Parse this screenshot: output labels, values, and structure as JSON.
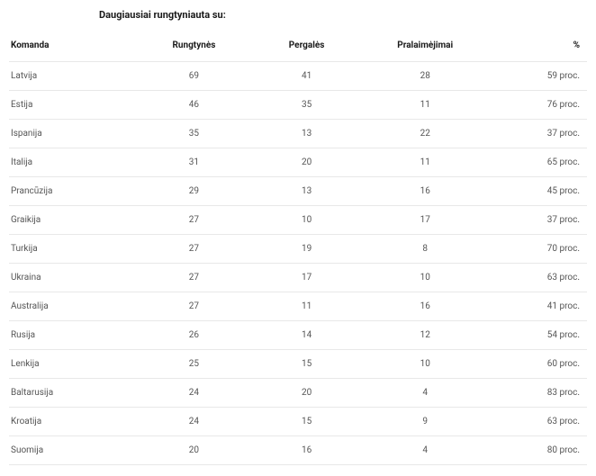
{
  "title": "Daugiausiai rungtyniauta su:",
  "columns": [
    "Komanda",
    "Rungtynės",
    "Pergalės",
    "Pralaimėjimai",
    "%"
  ],
  "pct_suffix": " proc.",
  "rows": [
    {
      "team": "Latvija",
      "games": "69",
      "wins": "41",
      "losses": "28",
      "pct": "59"
    },
    {
      "team": "Estija",
      "games": "46",
      "wins": "35",
      "losses": "11",
      "pct": "76"
    },
    {
      "team": "Ispanija",
      "games": "35",
      "wins": "13",
      "losses": "22",
      "pct": "37"
    },
    {
      "team": "Italija",
      "games": "31",
      "wins": "20",
      "losses": "11",
      "pct": "65"
    },
    {
      "team": "Prancūzija",
      "games": "29",
      "wins": "13",
      "losses": "16",
      "pct": "45"
    },
    {
      "team": "Graikija",
      "games": "27",
      "wins": "10",
      "losses": "17",
      "pct": "37"
    },
    {
      "team": "Turkija",
      "games": "27",
      "wins": "19",
      "losses": "8",
      "pct": "70"
    },
    {
      "team": "Ukraina",
      "games": "27",
      "wins": "17",
      "losses": "10",
      "pct": "63"
    },
    {
      "team": "Australija",
      "games": "27",
      "wins": "11",
      "losses": "16",
      "pct": "41"
    },
    {
      "team": "Rusija",
      "games": "26",
      "wins": "14",
      "losses": "12",
      "pct": "54"
    },
    {
      "team": "Lenkija",
      "games": "25",
      "wins": "15",
      "losses": "10",
      "pct": "60"
    },
    {
      "team": "Baltarusija",
      "games": "24",
      "wins": "20",
      "losses": "4",
      "pct": "83"
    },
    {
      "team": "Kroatija",
      "games": "24",
      "wins": "15",
      "losses": "9",
      "pct": "63"
    },
    {
      "team": "Suomija",
      "games": "20",
      "wins": "16",
      "losses": "4",
      "pct": "80"
    }
  ]
}
